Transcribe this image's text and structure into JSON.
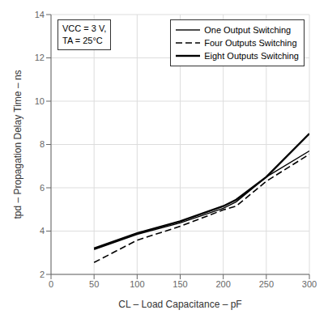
{
  "chart_data": {
    "type": "line",
    "xlabel": "CL – Load Capacitance – pF",
    "ylabel": "tpd – Propagation Delay Time – ns",
    "annotation": "VCC = 3 V,\nTA = 25°C",
    "x": [
      50,
      100,
      150,
      200,
      215,
      250,
      300
    ],
    "series": [
      {
        "name": "One Output Switching",
        "color": "#000000",
        "line_style": "solid",
        "values": [
          3.15,
          3.85,
          4.38,
          5.05,
          5.35,
          6.5,
          7.7
        ]
      },
      {
        "name": "Four Outputs Switching",
        "color": "#000000",
        "line_style": "dashed",
        "values": [
          2.55,
          3.58,
          4.22,
          4.98,
          5.15,
          6.3,
          7.55
        ]
      },
      {
        "name": "Eight Outputs Switching",
        "color": "#000000",
        "line_style": "solid",
        "values": [
          3.2,
          3.9,
          4.45,
          5.15,
          5.45,
          6.5,
          8.5
        ]
      }
    ],
    "xlim": [
      0,
      300
    ],
    "ylim": [
      2,
      14
    ],
    "xticks": [
      0,
      50,
      100,
      150,
      200,
      250,
      300
    ],
    "yticks": [
      2,
      4,
      6,
      8,
      10,
      12,
      14
    ],
    "grid": true,
    "legend": "upper right"
  }
}
